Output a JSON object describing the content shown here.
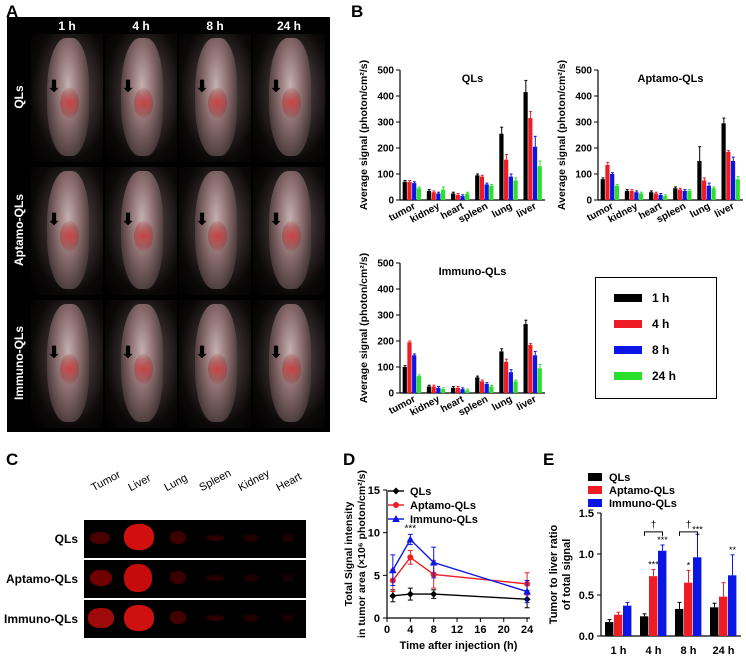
{
  "panels": {
    "a": "A",
    "b": "B",
    "c": "C",
    "d": "D",
    "e": "E"
  },
  "colors": {
    "h1": "#000000",
    "h4": "#ee1c24",
    "h8": "#0b16e6",
    "h24": "#2be02b",
    "qls": "#000000",
    "aptamo": "#ee1c24",
    "immuno": "#0b16e6"
  },
  "panel_a": {
    "time_labels": [
      "1 h",
      "4 h",
      "8 h",
      "24 h"
    ],
    "row_labels": [
      "QLs",
      "Aptamo-QLs",
      "Immuno-QLs"
    ]
  },
  "legend_b": {
    "items": [
      {
        "label": "1 h",
        "color": "#000000"
      },
      {
        "label": "4 h",
        "color": "#ee1c24"
      },
      {
        "label": "8 h",
        "color": "#0b16e6"
      },
      {
        "label": "24 h",
        "color": "#2be02b"
      }
    ]
  },
  "panel_c": {
    "organs": [
      "Tumor",
      "Liver",
      "Lung",
      "Spleen",
      "Kidney",
      "Heart"
    ],
    "rows": [
      "QLs",
      "Aptamo-QLs",
      "Immuno-QLs"
    ]
  },
  "chart_data": [
    {
      "id": "b1",
      "type": "bar",
      "title": "QLs",
      "categories": [
        "tumor",
        "kidney",
        "heart",
        "spleen",
        "lung",
        "liver"
      ],
      "ylabel": "Average signal (photon/cm²/s)",
      "ylim": [
        0,
        500
      ],
      "yticks": [
        0,
        100,
        200,
        300,
        400,
        500
      ],
      "series": [
        {
          "name": "1 h",
          "values": [
            70,
            35,
            25,
            95,
            255,
            415
          ],
          "errors": [
            5,
            5,
            5,
            5,
            25,
            45
          ]
        },
        {
          "name": "4 h",
          "values": [
            70,
            30,
            20,
            90,
            155,
            315
          ],
          "errors": [
            5,
            5,
            5,
            5,
            20,
            25
          ]
        },
        {
          "name": "8 h",
          "values": [
            65,
            25,
            15,
            60,
            90,
            205
          ],
          "errors": [
            5,
            5,
            5,
            5,
            10,
            40
          ]
        },
        {
          "name": "24 h",
          "values": [
            45,
            40,
            25,
            55,
            75,
            130
          ],
          "errors": [
            5,
            10,
            5,
            5,
            10,
            20
          ]
        }
      ]
    },
    {
      "id": "b2",
      "type": "bar",
      "title": "Aptamo-QLs",
      "categories": [
        "tumor",
        "kidney",
        "heart",
        "spleen",
        "lung",
        "liver"
      ],
      "ylabel": "Average signal (photon/cm²/s)",
      "ylim": [
        0,
        500
      ],
      "yticks": [
        0,
        100,
        200,
        300,
        400,
        500
      ],
      "series": [
        {
          "name": "1 h",
          "values": [
            80,
            35,
            30,
            45,
            150,
            295
          ],
          "errors": [
            5,
            5,
            5,
            5,
            55,
            20
          ]
        },
        {
          "name": "4 h",
          "values": [
            135,
            35,
            25,
            40,
            75,
            185
          ],
          "errors": [
            10,
            5,
            5,
            5,
            10,
            5
          ]
        },
        {
          "name": "8 h",
          "values": [
            100,
            30,
            20,
            35,
            55,
            150
          ],
          "errors": [
            5,
            5,
            5,
            5,
            10,
            15
          ]
        },
        {
          "name": "24 h",
          "values": [
            55,
            25,
            15,
            35,
            45,
            80
          ],
          "errors": [
            5,
            5,
            5,
            5,
            5,
            10
          ]
        }
      ]
    },
    {
      "id": "b3",
      "type": "bar",
      "title": "Immuno-QLs",
      "categories": [
        "tumor",
        "kidney",
        "heart",
        "spleen",
        "lung",
        "liver"
      ],
      "ylabel": "Average signal (photon/cm²/s)",
      "ylim": [
        0,
        500
      ],
      "yticks": [
        0,
        100,
        200,
        300,
        400,
        500
      ],
      "series": [
        {
          "name": "1 h",
          "values": [
            100,
            25,
            20,
            60,
            160,
            265
          ],
          "errors": [
            5,
            5,
            5,
            5,
            10,
            15
          ]
        },
        {
          "name": "4 h",
          "values": [
            195,
            25,
            20,
            45,
            120,
            185
          ],
          "errors": [
            5,
            5,
            5,
            5,
            10,
            5
          ]
        },
        {
          "name": "8 h",
          "values": [
            145,
            20,
            15,
            35,
            80,
            145
          ],
          "errors": [
            5,
            5,
            5,
            5,
            10,
            15
          ]
        },
        {
          "name": "24 h",
          "values": [
            65,
            15,
            10,
            25,
            45,
            95
          ],
          "errors": [
            5,
            5,
            5,
            5,
            5,
            15
          ]
        }
      ]
    },
    {
      "id": "d",
      "type": "line",
      "xlabel": "Time after injection (h)",
      "ylabel_lines": [
        "Total Signal  intensity",
        "in tumor area (×10⁶ photon/cm²/s)"
      ],
      "x": [
        1,
        4,
        8,
        24
      ],
      "xticks": [
        0,
        4,
        8,
        12,
        16,
        20,
        24
      ],
      "xlim": [
        0,
        24.5
      ],
      "ylim": [
        0,
        15
      ],
      "yticks": [
        0,
        5,
        10,
        15
      ],
      "annotation": {
        "text": "***",
        "x": 4
      },
      "series": [
        {
          "name": "QLs",
          "marker": "diamond",
          "values": [
            2.6,
            2.8,
            2.8,
            2.2
          ],
          "errors": [
            0.7,
            0.7,
            0.5,
            1.0
          ]
        },
        {
          "name": "Aptamo-QLs",
          "marker": "circle",
          "values": [
            4.4,
            7.1,
            5.1,
            4.0
          ],
          "errors": [
            1.3,
            0.8,
            1.6,
            1.3
          ]
        },
        {
          "name": "Immuno-QLs",
          "marker": "triangle",
          "values": [
            5.6,
            9.2,
            6.5,
            3.1
          ],
          "errors": [
            1.8,
            0.6,
            1.8,
            1.3
          ]
        }
      ]
    },
    {
      "id": "e",
      "type": "bar",
      "ylabel_lines": [
        "Tumor to liver ratio",
        "of total signal"
      ],
      "categories": [
        "1 h",
        "4 h",
        "8 h",
        "24 h"
      ],
      "ylim": [
        0,
        1.5
      ],
      "yticks": [
        "0.0",
        "0.5",
        "1.0",
        "1.5"
      ],
      "series": [
        {
          "name": "QLs",
          "values": [
            0.17,
            0.24,
            0.33,
            0.35
          ],
          "errors": [
            0.03,
            0.03,
            0.08,
            0.05
          ]
        },
        {
          "name": "Aptamo-QLs",
          "values": [
            0.26,
            0.73,
            0.65,
            0.48
          ],
          "errors": [
            0.03,
            0.08,
            0.15,
            0.17
          ]
        },
        {
          "name": "Immuno-QLs",
          "values": [
            0.37,
            1.04,
            0.96,
            0.74
          ],
          "errors": [
            0.04,
            0.07,
            0.28,
            0.25
          ]
        }
      ],
      "significance": [
        {
          "group": 1,
          "series": 1,
          "text": "***"
        },
        {
          "group": 1,
          "series": 2,
          "text": "***"
        },
        {
          "group": 2,
          "series": 1,
          "text": "*"
        },
        {
          "group": 2,
          "series": 2,
          "text": "***"
        },
        {
          "group": 3,
          "series": 2,
          "text": "**"
        }
      ],
      "brackets": [
        {
          "group": 1,
          "text": "†"
        },
        {
          "group": 2,
          "text": "†"
        }
      ]
    }
  ]
}
